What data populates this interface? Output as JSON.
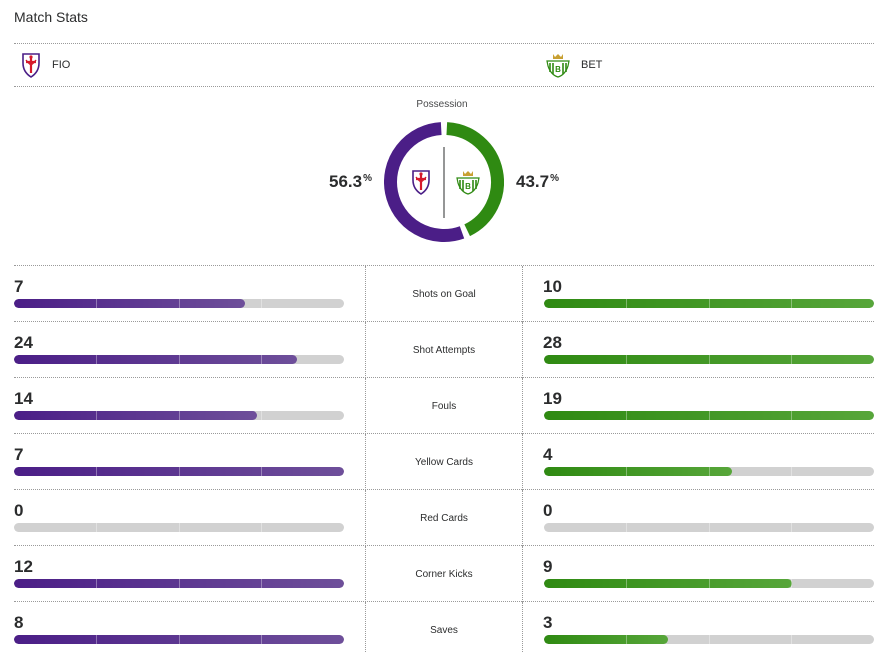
{
  "title": "Match Stats",
  "teams": {
    "home": {
      "abbr": "FIO",
      "color": "#4b1e87",
      "logo": "fiorentina-crest-icon"
    },
    "away": {
      "abbr": "BET",
      "color": "#2f8a12",
      "logo": "real-betis-crest-icon"
    }
  },
  "possession": {
    "label": "Possession",
    "home_pct": "56.3",
    "away_pct": "43.7",
    "unit": "%",
    "home_value": 56.3,
    "away_value": 43.7
  },
  "stats": [
    {
      "label": "Shots on Goal",
      "home": "7",
      "away": "10",
      "home_fill": 0.7,
      "away_fill": 1.0
    },
    {
      "label": "Shot Attempts",
      "home": "24",
      "away": "28",
      "home_fill": 0.857,
      "away_fill": 1.0
    },
    {
      "label": "Fouls",
      "home": "14",
      "away": "19",
      "home_fill": 0.737,
      "away_fill": 1.0
    },
    {
      "label": "Yellow Cards",
      "home": "7",
      "away": "4",
      "home_fill": 1.0,
      "away_fill": 0.571
    },
    {
      "label": "Red Cards",
      "home": "0",
      "away": "0",
      "home_fill": 0,
      "away_fill": 0
    },
    {
      "label": "Corner Kicks",
      "home": "12",
      "away": "9",
      "home_fill": 1.0,
      "away_fill": 0.75
    },
    {
      "label": "Saves",
      "home": "8",
      "away": "3",
      "home_fill": 1.0,
      "away_fill": 0.375
    }
  ]
}
